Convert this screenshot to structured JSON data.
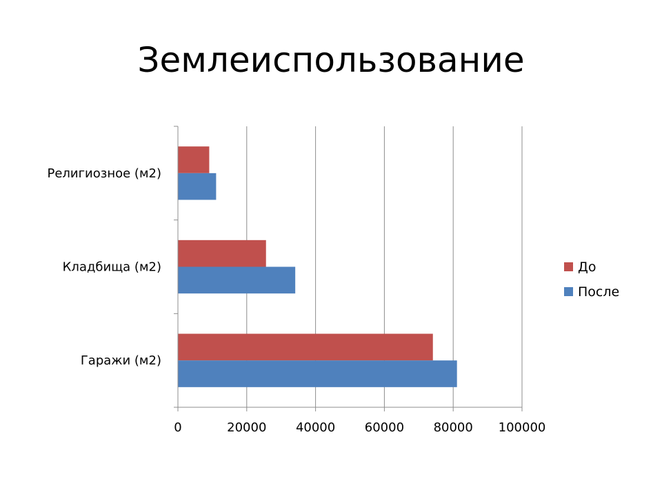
{
  "slide": {
    "title": "Землеиспользование"
  },
  "chart_data": {
    "type": "bar",
    "orientation": "horizontal",
    "categories": [
      "Религиозное (м2)",
      "Кладбища (м2)",
      "Гаражи (м2)"
    ],
    "series": [
      {
        "name": "До",
        "color": "#C0504D",
        "values": [
          9000,
          25500,
          74000
        ]
      },
      {
        "name": "После",
        "color": "#4F81BD",
        "values": [
          11000,
          34000,
          81000
        ]
      }
    ],
    "xlim": [
      0,
      100000
    ],
    "x_ticks": [
      0,
      20000,
      40000,
      60000,
      80000,
      100000
    ],
    "x_tick_labels": [
      "0",
      "20000",
      "40000",
      "60000",
      "80000",
      "100000"
    ],
    "grid": "vertical",
    "legend_position": "right"
  }
}
